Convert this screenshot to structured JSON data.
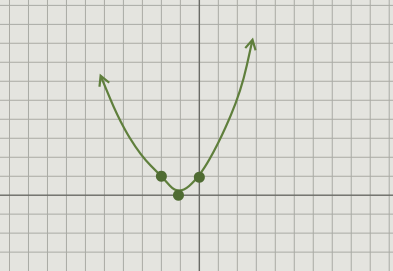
{
  "chart_data": {
    "type": "line",
    "x": [
      -5.2,
      -4.2,
      -3.1,
      -2,
      -1.1,
      0,
      1.1,
      2.2,
      2.8
    ],
    "values": [
      6.3,
      3.9,
      2.1,
      1,
      0,
      0.95,
      2.9,
      5.5,
      8.2
    ],
    "color": "#5f7f3c",
    "points": {
      "x": [
        -2,
        -1.1,
        0
      ],
      "values": [
        1,
        0,
        0.95
      ]
    },
    "xlim": [
      -10.5,
      10.2
    ],
    "ylim": [
      -4,
      10.3
    ],
    "grid": true
  }
}
